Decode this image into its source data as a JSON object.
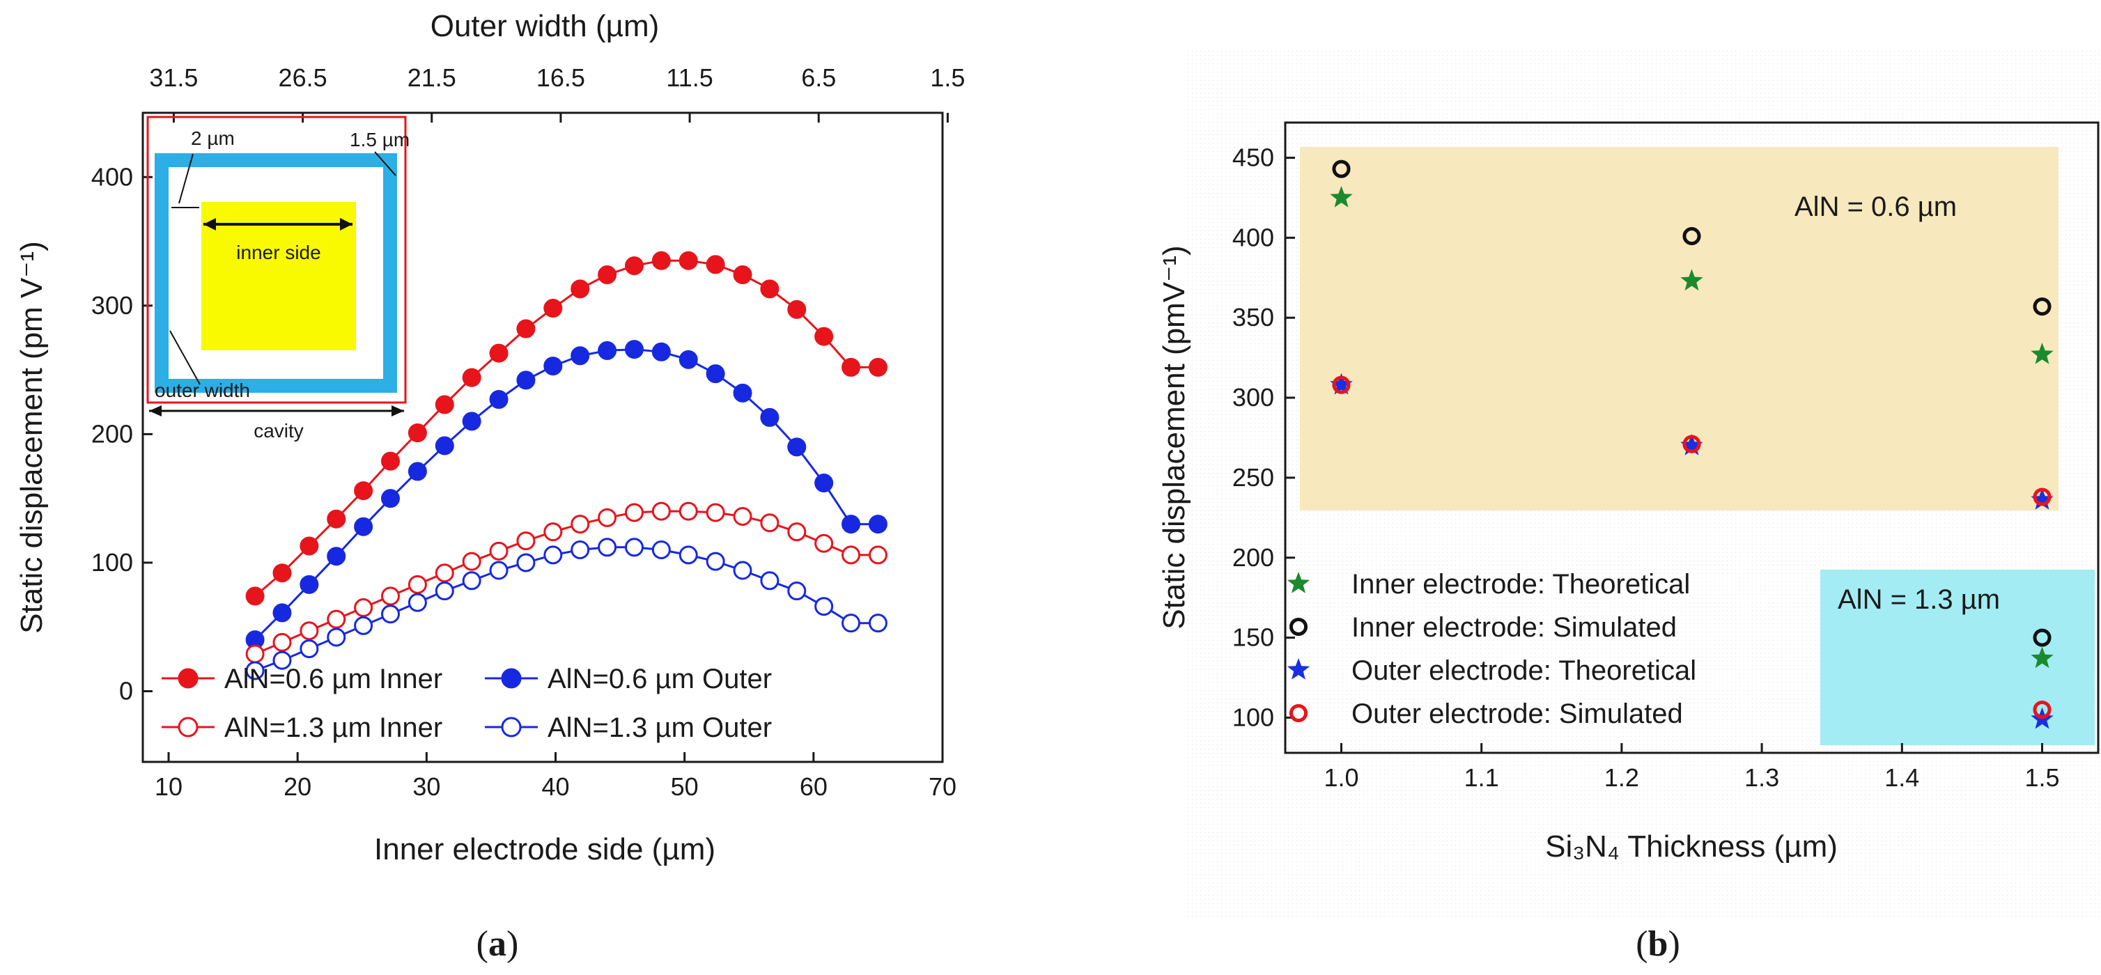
{
  "chart_data": [
    {
      "type": "line",
      "panel_label": "(a)",
      "panel_label_parts": [
        "(",
        "a",
        ")"
      ],
      "xlabel": "Inner electrode side (µm)",
      "ylabel": "Static displacement (pm V⁻¹)",
      "top_xlabel": "Outer width (µm)",
      "xlim": [
        8,
        70
      ],
      "ylim": [
        -55,
        450
      ],
      "xticks": [
        10,
        20,
        30,
        40,
        50,
        60,
        70
      ],
      "yticks": [
        0,
        100,
        200,
        300,
        400
      ],
      "top_xticks": [
        {
          "x": 10.4,
          "label": "31.5"
        },
        {
          "x": 20.4,
          "label": "26.5"
        },
        {
          "x": 30.4,
          "label": "21.5"
        },
        {
          "x": 40.4,
          "label": "16.5"
        },
        {
          "x": 50.4,
          "label": "11.5"
        },
        {
          "x": 60.4,
          "label": "6.5"
        },
        {
          "x": 70.4,
          "label": "1.5"
        }
      ],
      "x": [
        16.7,
        18.8,
        20.9,
        23.0,
        25.1,
        27.2,
        29.3,
        31.4,
        33.5,
        35.6,
        37.7,
        39.8,
        41.9,
        44.0,
        46.1,
        48.2,
        50.3,
        52.4,
        54.5,
        56.6,
        58.7,
        60.8,
        62.9,
        65.0
      ],
      "series": [
        {
          "name": "AlN=0.6 µm Inner",
          "color": "#e8141b",
          "filled": true,
          "values": [
            74,
            92,
            113,
            134,
            156,
            179,
            201,
            223,
            244,
            263,
            282,
            298,
            313,
            324,
            331,
            335,
            335,
            332,
            324,
            313,
            297,
            276,
            252,
            252
          ]
        },
        {
          "name": "AlN=0.6 µm Outer",
          "color": "#1629e0",
          "filled": true,
          "values": [
            40,
            61,
            83,
            105,
            128,
            150,
            171,
            191,
            210,
            227,
            242,
            253,
            261,
            265,
            266,
            264,
            258,
            247,
            232,
            213,
            190,
            162,
            130,
            130
          ]
        },
        {
          "name": "AlN=1.3 µm Inner",
          "color": "#e8141b",
          "filled": false,
          "values": [
            29,
            38,
            47,
            56,
            65,
            74,
            83,
            92,
            101,
            109,
            117,
            124,
            130,
            135,
            139,
            140,
            140,
            139,
            136,
            131,
            124,
            115,
            106,
            106
          ]
        },
        {
          "name": "AlN=1.3 µm Outer",
          "color": "#1629e0",
          "filled": false,
          "values": [
            16,
            24,
            33,
            42,
            51,
            60,
            69,
            78,
            86,
            94,
            100,
            106,
            110,
            112,
            112,
            110,
            106,
            101,
            94,
            86,
            78,
            66,
            53,
            53
          ]
        }
      ],
      "inset_labels": [
        "2 µm",
        "1.5 µm",
        "inner side",
        "outer width",
        "cavity"
      ]
    },
    {
      "type": "scatter",
      "panel_label": "(b)",
      "panel_label_parts": [
        "(",
        "b",
        ")"
      ],
      "xlabel": "Si₃N₄ Thickness (µm)",
      "ylabel": "Static displacement (pmV⁻¹)",
      "xlim": [
        0.96,
        1.54
      ],
      "ylim": [
        78,
        472
      ],
      "xticks": [
        1.0,
        1.1,
        1.2,
        1.3,
        1.4,
        1.5
      ],
      "xtick_labels": [
        "1.0",
        "1.1",
        "1.2",
        "1.3",
        "1.4",
        "1.5"
      ],
      "yticks": [
        100,
        150,
        200,
        250,
        300,
        350,
        400,
        450
      ],
      "series": [
        {
          "name": "Inner electrode: Theoretical",
          "marker": "star",
          "color": "#1b8a2e",
          "x": [
            1.0,
            1.25,
            1.5,
            1.5
          ],
          "values": [
            425,
            373,
            327,
            137
          ]
        },
        {
          "name": "Inner electrode: Simulated",
          "marker": "open-circle",
          "color": "#111111",
          "x": [
            1.0,
            1.25,
            1.5,
            1.5
          ],
          "values": [
            443,
            401,
            357,
            150
          ]
        },
        {
          "name": "Outer electrode: Theoretical",
          "marker": "star",
          "color": "#1a2fe0",
          "x": [
            1.0,
            1.25,
            1.5,
            1.5
          ],
          "values": [
            308,
            270,
            236,
            99
          ]
        },
        {
          "name": "Outer electrode: Simulated",
          "marker": "open-circle",
          "color": "#e8141b",
          "x": [
            1.0,
            1.25,
            1.5,
            1.5
          ],
          "values": [
            308,
            271,
            238,
            105
          ]
        }
      ],
      "annotations": [
        "AlN = 0.6 µm",
        "AlN = 1.3 µm"
      ],
      "region_colors": {
        "aln_06": "#f7e8bd",
        "aln_13": "#a3ecf3"
      }
    }
  ]
}
